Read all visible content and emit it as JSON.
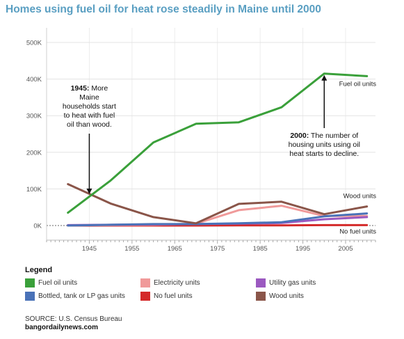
{
  "title": "Homes using fuel oil for heat rose steadily in Maine until 2000",
  "chart_data": {
    "type": "line",
    "title": "Homes using fuel oil for heat rose steadily in Maine until 2000",
    "xlabel": "",
    "ylabel": "",
    "x": [
      1940,
      1950,
      1960,
      1970,
      1980,
      1990,
      2000,
      2010
    ],
    "x_ticks": [
      "1945",
      "1955",
      "1965",
      "1975",
      "1985",
      "1995",
      "2005"
    ],
    "x_tick_values": [
      1945,
      1955,
      1965,
      1975,
      1985,
      1995,
      2005
    ],
    "xlim": [
      1935,
      2012
    ],
    "y_ticks": [
      "0K",
      "100K",
      "200K",
      "300K",
      "400K",
      "500K"
    ],
    "y_tick_values": [
      0,
      100000,
      200000,
      300000,
      400000,
      500000
    ],
    "ylim": [
      -40000,
      540000
    ],
    "grid": true,
    "series": [
      {
        "name": "Fuel oil units",
        "color": "#3aa03a",
        "values": [
          35000,
          123000,
          227000,
          278000,
          282000,
          323000,
          415000,
          408000
        ]
      },
      {
        "name": "Electricity units",
        "color": "#f09a9a",
        "values": [
          500,
          1000,
          2000,
          5000,
          42000,
          54000,
          26000,
          26000
        ]
      },
      {
        "name": "Utility gas units",
        "color": "#9b59c0",
        "values": [
          1000,
          2000,
          3000,
          4000,
          5000,
          7000,
          17000,
          23000
        ]
      },
      {
        "name": "Bottled, tank or LP gas units",
        "color": "#4a72b8",
        "values": [
          0,
          2000,
          4000,
          4000,
          6000,
          9000,
          25000,
          33000
        ]
      },
      {
        "name": "No fuel units",
        "color": "#d42a2a",
        "values": [
          0,
          0,
          0,
          0,
          500,
          500,
          1000,
          1000
        ]
      },
      {
        "name": "Wood units",
        "color": "#8a5549",
        "values": [
          113000,
          60000,
          23000,
          6000,
          59000,
          65000,
          31000,
          52000
        ]
      }
    ],
    "end_labels": {
      "fuel_oil": "Fuel oil units",
      "wood": "Wood units",
      "no_fuel": "No fuel units"
    },
    "annotations": [
      {
        "lines": [
          "1945: More",
          "Maine",
          "households start",
          "to heat with fuel",
          "oil than wood."
        ],
        "x": 1945,
        "y": 82000
      },
      {
        "lines": [
          "2000: The number of",
          "housing units using oil",
          "heat starts to decline."
        ],
        "x": 2000,
        "y": 415000
      }
    ]
  },
  "legend": {
    "title": "Legend",
    "items": [
      {
        "label": "Fuel oil units",
        "color": "#3aa03a"
      },
      {
        "label": "Electricity units",
        "color": "#f09a9a"
      },
      {
        "label": "Utility gas units",
        "color": "#9b59c0"
      },
      {
        "label": "Bottled, tank or LP gas units",
        "color": "#4a72b8"
      },
      {
        "label": "No fuel units",
        "color": "#d42a2a"
      },
      {
        "label": "Wood units",
        "color": "#8a5549"
      }
    ]
  },
  "source": {
    "line1": "SOURCE: U.S. Census Bureau",
    "line2": "bangordailynews.com"
  }
}
